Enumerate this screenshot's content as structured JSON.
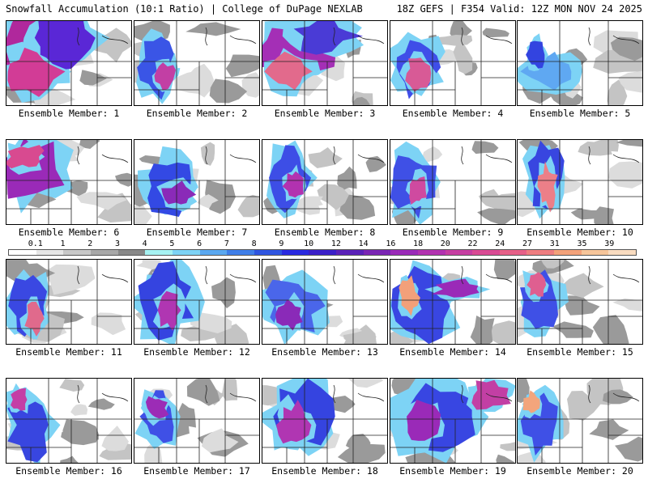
{
  "header": {
    "title_left": "Snowfall Accumulation (10:1 Ratio) | College of DuPage NEXLAB",
    "title_right": "18Z GEFS | F354 Valid: 12Z MON NOV 24 2025"
  },
  "panels": [
    {
      "label": "Ensemble Member: 1",
      "member": 1,
      "snow": [
        [
          0.22,
          0.3,
          1.3,
          1.1,
          8,
          "#b0289c"
        ],
        [
          0.45,
          0.2,
          1.1,
          0.9,
          5,
          "#5a27d6"
        ],
        [
          0.2,
          0.6,
          0.9,
          0.7,
          14,
          "#d23c96"
        ]
      ]
    },
    {
      "label": "Ensemble Member: 2",
      "member": 2,
      "snow": [
        [
          0.18,
          0.55,
          0.55,
          0.9,
          4,
          "#3a55e6"
        ],
        [
          0.25,
          0.65,
          0.35,
          0.4,
          10,
          "#c23fa4"
        ]
      ]
    },
    {
      "label": "Ensemble Member: 3",
      "member": 3,
      "snow": [
        [
          0.25,
          0.35,
          1.2,
          1.0,
          9,
          "#a42fb6"
        ],
        [
          0.5,
          0.18,
          1.0,
          0.5,
          5,
          "#4a3bd6"
        ],
        [
          0.22,
          0.6,
          0.7,
          0.6,
          16,
          "#e26a8c"
        ]
      ]
    },
    {
      "label": "Ensemble Member: 4",
      "member": 4,
      "snow": [
        [
          0.2,
          0.55,
          0.8,
          0.9,
          5,
          "#3f4ee8"
        ],
        [
          0.22,
          0.62,
          0.4,
          0.5,
          14,
          "#d85a96"
        ]
      ]
    },
    {
      "label": "Ensemble Member: 5",
      "member": 5,
      "snow": [
        [
          0.25,
          0.6,
          0.8,
          0.6,
          3,
          "#5fa8f2"
        ],
        [
          0.15,
          0.4,
          0.3,
          0.5,
          5,
          "#3344e0"
        ]
      ]
    },
    {
      "label": "Ensemble Member: 6",
      "member": 6,
      "snow": [
        [
          0.2,
          0.35,
          1.0,
          1.0,
          8,
          "#9a2ab8"
        ],
        [
          0.15,
          0.2,
          0.6,
          0.4,
          16,
          "#d84a90"
        ]
      ]
    },
    {
      "label": "Ensemble Member: 7",
      "member": 7,
      "snow": [
        [
          0.3,
          0.55,
          0.9,
          0.9,
          5,
          "#3349e4"
        ],
        [
          0.35,
          0.65,
          0.5,
          0.4,
          8,
          "#8a2ab8"
        ]
      ]
    },
    {
      "label": "Ensemble Member: 8",
      "member": 8,
      "snow": [
        [
          0.22,
          0.45,
          0.6,
          1.0,
          5,
          "#3d4ee6"
        ],
        [
          0.25,
          0.55,
          0.3,
          0.5,
          10,
          "#b232b0"
        ]
      ]
    },
    {
      "label": "Ensemble Member: 9",
      "member": 9,
      "snow": [
        [
          0.18,
          0.5,
          0.7,
          1.0,
          5,
          "#3f50e6"
        ],
        [
          0.22,
          0.6,
          0.3,
          0.5,
          14,
          "#cf4aa0"
        ]
      ]
    },
    {
      "label": "Ensemble Member: 10",
      "member": 10,
      "snow": [
        [
          0.22,
          0.45,
          0.6,
          1.1,
          6,
          "#3846e0"
        ],
        [
          0.24,
          0.55,
          0.3,
          0.7,
          18,
          "#ec7f88"
        ]
      ]
    },
    {
      "label": "Ensemble Member: 11",
      "member": 11,
      "snow": [
        [
          0.18,
          0.55,
          0.6,
          1.0,
          6,
          "#3a48e2"
        ],
        [
          0.22,
          0.7,
          0.3,
          0.5,
          16,
          "#e06a8c"
        ]
      ]
    },
    {
      "label": "Ensemble Member: 12",
      "member": 12,
      "snow": [
        [
          0.25,
          0.5,
          0.9,
          1.1,
          6,
          "#3544e0"
        ],
        [
          0.28,
          0.6,
          0.4,
          0.6,
          10,
          "#b036b2"
        ]
      ]
    },
    {
      "label": "Ensemble Member: 13",
      "member": 13,
      "snow": [
        [
          0.25,
          0.55,
          0.9,
          0.9,
          4,
          "#4a66ea"
        ],
        [
          0.22,
          0.65,
          0.4,
          0.5,
          8,
          "#8a2ab8"
        ]
      ]
    },
    {
      "label": "Ensemble Member: 14",
      "member": 14,
      "snow": [
        [
          0.25,
          0.55,
          0.9,
          1.1,
          6,
          "#3946e2"
        ],
        [
          0.15,
          0.45,
          0.3,
          0.6,
          20,
          "#f2a07a"
        ],
        [
          0.55,
          0.35,
          0.8,
          0.3,
          8,
          "#9a2ab8"
        ]
      ]
    },
    {
      "label": "Ensemble Member: 15",
      "member": 15,
      "snow": [
        [
          0.18,
          0.5,
          0.6,
          0.9,
          5,
          "#3f50e6"
        ],
        [
          0.15,
          0.3,
          0.3,
          0.4,
          16,
          "#df5f90"
        ]
      ]
    },
    {
      "label": "Ensemble Member: 16",
      "member": 16,
      "snow": [
        [
          0.2,
          0.55,
          0.7,
          1.0,
          6,
          "#3846e0"
        ],
        [
          0.1,
          0.25,
          0.3,
          0.4,
          12,
          "#c43ea6"
        ]
      ]
    },
    {
      "label": "Ensemble Member: 17",
      "member": 17,
      "snow": [
        [
          0.2,
          0.45,
          0.6,
          0.9,
          5,
          "#3f50e6"
        ],
        [
          0.18,
          0.35,
          0.35,
          0.4,
          9,
          "#9c2cb6"
        ]
      ]
    },
    {
      "label": "Ensemble Member: 18",
      "member": 18,
      "snow": [
        [
          0.3,
          0.45,
          1.0,
          1.1,
          6,
          "#3544e0"
        ],
        [
          0.25,
          0.55,
          0.5,
          0.7,
          10,
          "#b036b2"
        ]
      ]
    },
    {
      "label": "Ensemble Member: 19",
      "member": 19,
      "snow": [
        [
          0.35,
          0.45,
          1.2,
          1.1,
          6,
          "#3846e2"
        ],
        [
          0.25,
          0.55,
          0.6,
          0.7,
          9,
          "#9a2ab8"
        ],
        [
          0.8,
          0.2,
          0.6,
          0.5,
          12,
          "#c23fa4"
        ]
      ]
    },
    {
      "label": "Ensemble Member: 20",
      "member": 20,
      "snow": [
        [
          0.18,
          0.5,
          0.6,
          1.0,
          5,
          "#3f50e6"
        ],
        [
          0.12,
          0.3,
          0.3,
          0.4,
          20,
          "#f3a57c"
        ]
      ]
    }
  ],
  "colorbar": {
    "labels": [
      "0.1",
      "1",
      "2",
      "3",
      "4",
      "5",
      "6",
      "7",
      "8",
      "9",
      "10",
      "12",
      "14",
      "16",
      "18",
      "20",
      "22",
      "24",
      "27",
      "31",
      "35",
      "39"
    ],
    "colors": [
      "#ffffff",
      "#e6e6e6",
      "#c8c8c8",
      "#a8a8a8",
      "#888888",
      "#a6f2f2",
      "#7dd3f5",
      "#5aa8f0",
      "#3f7ee8",
      "#2f55e0",
      "#2a2ae0",
      "#3a1fc8",
      "#5a21b8",
      "#7a25b4",
      "#9a2ab8",
      "#b232b0",
      "#c63ea2",
      "#d94a94",
      "#e66088",
      "#ee7d80",
      "#f3a27a",
      "#f6c59a",
      "#f9dcc0"
    ]
  }
}
